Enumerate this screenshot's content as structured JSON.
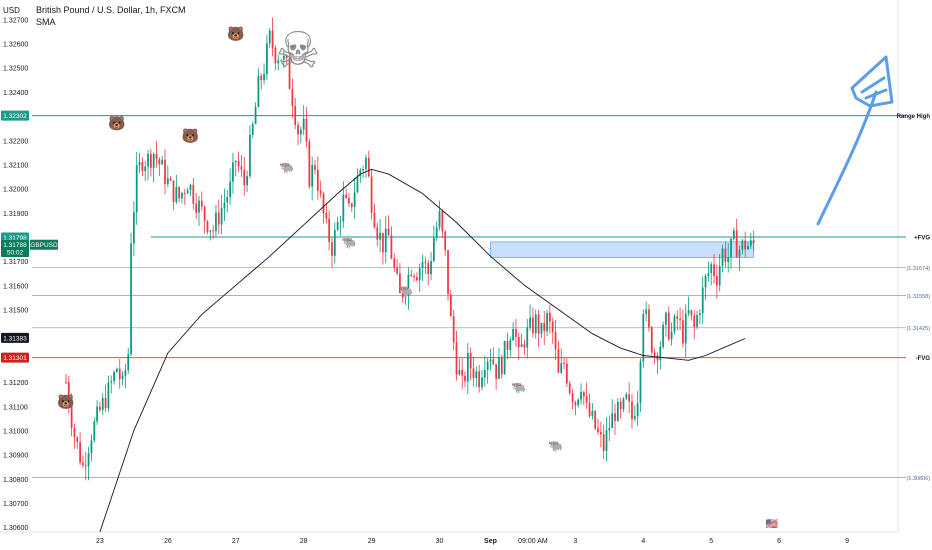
{
  "header": {
    "title": "British Pound / U.S. Dollar, 1h, FXCM",
    "indicator": "SMA",
    "currency": "USD"
  },
  "chart_data": {
    "type": "candlestick",
    "symbol_label": "GBPUSD",
    "y_range": [
      1.3058,
      1.3278
    ],
    "y_ticks": [
      "1.32700",
      "1.32600",
      "1.32500",
      "1.32400",
      "1.32200",
      "1.32100",
      "1.32000",
      "1.31900",
      "1.31700",
      "1.31600",
      "1.31500",
      "1.31200",
      "1.31100",
      "1.31000",
      "1.30900",
      "1.30800",
      "1.30700",
      "1.30600"
    ],
    "x_ticks": [
      {
        "label": "23",
        "t": 12
      },
      {
        "label": "26",
        "t": 36
      },
      {
        "label": "27",
        "t": 60
      },
      {
        "label": "28",
        "t": 84
      },
      {
        "label": "29",
        "t": 108
      },
      {
        "label": "30",
        "t": 132
      },
      {
        "label": "Sep",
        "t": 150
      },
      {
        "label": "09:00 AM",
        "t": 165
      },
      {
        "label": "3",
        "t": 180
      },
      {
        "label": "4",
        "t": 204
      },
      {
        "label": "5",
        "t": 228
      },
      {
        "label": "6",
        "t": 252
      },
      {
        "label": "9",
        "t": 276
      }
    ],
    "t_range": [
      -12,
      294
    ],
    "price_path": [
      [
        0,
        1.312
      ],
      [
        3,
        1.3098
      ],
      [
        6,
        1.3085
      ],
      [
        9,
        1.3099
      ],
      [
        12,
        1.3108
      ],
      [
        15,
        1.3116
      ],
      [
        18,
        1.3126
      ],
      [
        20,
        1.3118
      ],
      [
        22,
        1.3132
      ],
      [
        23,
        1.318
      ],
      [
        25,
        1.3205
      ],
      [
        27,
        1.3212
      ],
      [
        29,
        1.3212
      ],
      [
        31,
        1.3215
      ],
      [
        34,
        1.3208
      ],
      [
        37,
        1.32
      ],
      [
        40,
        1.3196
      ],
      [
        43,
        1.3203
      ],
      [
        46,
        1.3195
      ],
      [
        49,
        1.3188
      ],
      [
        52,
        1.3183
      ],
      [
        55,
        1.3192
      ],
      [
        58,
        1.32
      ],
      [
        60,
        1.3212
      ],
      [
        63,
        1.3202
      ],
      [
        66,
        1.3225
      ],
      [
        68,
        1.3242
      ],
      [
        70,
        1.325
      ],
      [
        72,
        1.3262
      ],
      [
        74,
        1.3256
      ],
      [
        76,
        1.3255
      ],
      [
        78,
        1.325
      ],
      [
        80,
        1.3238
      ],
      [
        82,
        1.3224
      ],
      [
        84,
        1.3225
      ],
      [
        86,
        1.3205
      ],
      [
        88,
        1.321
      ],
      [
        90,
        1.3195
      ],
      [
        92,
        1.3183
      ],
      [
        94,
        1.3176
      ],
      [
        96,
        1.3185
      ],
      [
        98,
        1.3195
      ],
      [
        100,
        1.319
      ],
      [
        102,
        1.32
      ],
      [
        104,
        1.3208
      ],
      [
        106,
        1.3212
      ],
      [
        108,
        1.3195
      ],
      [
        110,
        1.3183
      ],
      [
        112,
        1.3177
      ],
      [
        114,
        1.318
      ],
      [
        116,
        1.3166
      ],
      [
        118,
        1.3155
      ],
      [
        120,
        1.316
      ],
      [
        122,
        1.3168
      ],
      [
        124,
        1.3166
      ],
      [
        126,
        1.317
      ],
      [
        128,
        1.3165
      ],
      [
        130,
        1.318
      ],
      [
        132,
        1.3188
      ],
      [
        134,
        1.3172
      ],
      [
        136,
        1.3145
      ],
      [
        138,
        1.3128
      ],
      [
        140,
        1.3118
      ],
      [
        142,
        1.3128
      ],
      [
        144,
        1.3125
      ],
      [
        146,
        1.3122
      ],
      [
        148,
        1.313
      ],
      [
        150,
        1.3132
      ],
      [
        152,
        1.3125
      ],
      [
        154,
        1.3128
      ],
      [
        156,
        1.3136
      ],
      [
        158,
        1.3146
      ],
      [
        160,
        1.313
      ],
      [
        162,
        1.3138
      ],
      [
        164,
        1.3142
      ],
      [
        166,
        1.3145
      ],
      [
        168,
        1.314
      ],
      [
        170,
        1.3146
      ],
      [
        172,
        1.314
      ],
      [
        174,
        1.3122
      ],
      [
        176,
        1.3128
      ],
      [
        178,
        1.3118
      ],
      [
        180,
        1.3112
      ],
      [
        182,
        1.312
      ],
      [
        184,
        1.3108
      ],
      [
        186,
        1.3104
      ],
      [
        188,
        1.3098
      ],
      [
        190,
        1.3093
      ],
      [
        192,
        1.3102
      ],
      [
        194,
        1.3108
      ],
      [
        196,
        1.3106
      ],
      [
        198,
        1.3112
      ],
      [
        200,
        1.3105
      ],
      [
        202,
        1.3115
      ],
      [
        204,
        1.3152
      ],
      [
        206,
        1.314
      ],
      [
        208,
        1.3132
      ],
      [
        210,
        1.3136
      ],
      [
        212,
        1.3144
      ],
      [
        214,
        1.314
      ],
      [
        216,
        1.3146
      ],
      [
        218,
        1.314
      ],
      [
        220,
        1.3148
      ],
      [
        222,
        1.3142
      ],
      [
        224,
        1.3152
      ],
      [
        226,
        1.3162
      ],
      [
        228,
        1.3168
      ],
      [
        230,
        1.3164
      ],
      [
        232,
        1.3174
      ],
      [
        234,
        1.3172
      ],
      [
        236,
        1.3178
      ],
      [
        238,
        1.3175
      ],
      [
        240,
        1.3177
      ],
      [
        242,
        1.3176
      ],
      [
        243,
        1.3177
      ]
    ],
    "sma_path": [
      [
        12,
        1.3058
      ],
      [
        24,
        1.31
      ],
      [
        36,
        1.3132
      ],
      [
        48,
        1.3148
      ],
      [
        60,
        1.316
      ],
      [
        72,
        1.3172
      ],
      [
        84,
        1.3185
      ],
      [
        96,
        1.3198
      ],
      [
        104,
        1.3206
      ],
      [
        108,
        1.3208
      ],
      [
        114,
        1.3206
      ],
      [
        126,
        1.3198
      ],
      [
        138,
        1.3186
      ],
      [
        150,
        1.3172
      ],
      [
        162,
        1.316
      ],
      [
        174,
        1.315
      ],
      [
        186,
        1.314
      ],
      [
        196,
        1.3134
      ],
      [
        204,
        1.3131
      ],
      [
        212,
        1.313
      ],
      [
        220,
        1.3129
      ],
      [
        226,
        1.3131
      ],
      [
        232,
        1.3134
      ],
      [
        240,
        1.3138
      ]
    ],
    "levels": [
      {
        "label": "Range High",
        "price": 1.32302,
        "color": "#1a9c8c"
      },
      {
        "label": "+FVG",
        "price": 1.318,
        "color": "#1a9c8c"
      },
      {
        "label": "(1.31674)",
        "price": 1.31674,
        "color": "#9bb9e8"
      },
      {
        "label": "(1.31558)",
        "price": 1.31558,
        "color": "#9a9a9a"
      },
      {
        "label": "(1.31425)",
        "price": 1.31425,
        "color": "#9bb9e8"
      },
      {
        "label": "-FVG",
        "price": 1.31301,
        "color": "#e05555"
      },
      {
        "label": "(1.30806)",
        "price": 1.30806,
        "color": "#9a9a9a"
      }
    ],
    "price_badges": [
      {
        "text": "1.32302",
        "price": 1.32302,
        "color": "#1a9c8c"
      },
      {
        "text": "1.31798",
        "price": 1.31798,
        "color": "#1a9c8c"
      },
      {
        "text": "1.31788",
        "price": 1.31768,
        "color": "#0f7a5e"
      },
      {
        "text": "50:02",
        "price": 1.31738,
        "color": "#0f7a5e"
      },
      {
        "text": "1.31383",
        "price": 1.31383,
        "color": "#131722"
      },
      {
        "text": "1.31301",
        "price": 1.31301,
        "color": "#cc2222"
      }
    ],
    "fvg_zone": {
      "t0": 150,
      "t1": 243,
      "top": 1.3178,
      "bottom": 1.31715
    }
  }
}
